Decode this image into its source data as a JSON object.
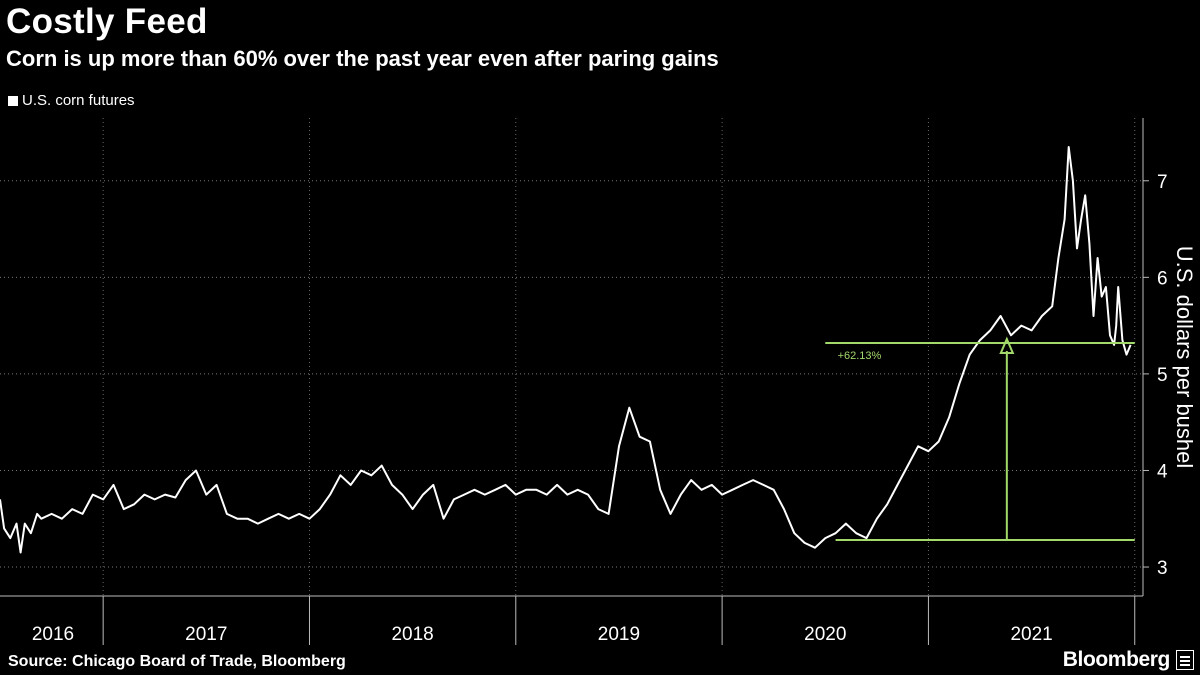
{
  "chart_data": {
    "type": "line",
    "title": "Costly Feed",
    "subtitle": "Corn is up more than 60% over the past year even after paring gains",
    "ylabel": "U.S. dollars per bushel",
    "ylim": [
      2.7,
      7.65
    ],
    "yticks": [
      3,
      4,
      5,
      6,
      7
    ],
    "xlim": [
      2016.0,
      2021.54
    ],
    "xtick_labels": [
      "2016",
      "2017",
      "2018",
      "2019",
      "2020",
      "2021"
    ],
    "grid": true,
    "legend_position": "top-left",
    "series": [
      {
        "name": "U.S. corn futures",
        "color": "#ffffff",
        "x": [
          2016.0,
          2016.02,
          2016.05,
          2016.08,
          2016.1,
          2016.12,
          2016.15,
          2016.18,
          2016.2,
          2016.25,
          2016.3,
          2016.35,
          2016.4,
          2016.45,
          2016.5,
          2016.55,
          2016.6,
          2016.65,
          2016.7,
          2016.75,
          2016.8,
          2016.85,
          2016.9,
          2016.95,
          2017.0,
          2017.05,
          2017.1,
          2017.15,
          2017.2,
          2017.25,
          2017.3,
          2017.35,
          2017.4,
          2017.45,
          2017.5,
          2017.55,
          2017.6,
          2017.65,
          2017.7,
          2017.75,
          2017.8,
          2017.85,
          2017.9,
          2017.95,
          2018.0,
          2018.05,
          2018.1,
          2018.15,
          2018.2,
          2018.25,
          2018.3,
          2018.35,
          2018.4,
          2018.45,
          2018.5,
          2018.55,
          2018.6,
          2018.65,
          2018.7,
          2018.75,
          2018.8,
          2018.85,
          2018.9,
          2018.95,
          2019.0,
          2019.05,
          2019.1,
          2019.15,
          2019.2,
          2019.25,
          2019.3,
          2019.35,
          2019.4,
          2019.45,
          2019.5,
          2019.55,
          2019.6,
          2019.65,
          2019.7,
          2019.75,
          2019.8,
          2019.85,
          2019.9,
          2019.95,
          2020.0,
          2020.05,
          2020.1,
          2020.15,
          2020.2,
          2020.25,
          2020.3,
          2020.35,
          2020.4,
          2020.45,
          2020.5,
          2020.55,
          2020.6,
          2020.65,
          2020.7,
          2020.75,
          2020.8,
          2020.85,
          2020.9,
          2020.95,
          2021.0,
          2021.05,
          2021.1,
          2021.13,
          2021.16,
          2021.18,
          2021.2,
          2021.22,
          2021.24,
          2021.26,
          2021.28,
          2021.3,
          2021.32,
          2021.34,
          2021.36,
          2021.38,
          2021.4,
          2021.41,
          2021.42,
          2021.44,
          2021.46,
          2021.48
        ],
        "values": [
          3.7,
          3.4,
          3.3,
          3.45,
          3.15,
          3.45,
          3.35,
          3.55,
          3.5,
          3.55,
          3.5,
          3.6,
          3.55,
          3.75,
          3.7,
          3.85,
          3.6,
          3.65,
          3.75,
          3.7,
          3.75,
          3.72,
          3.9,
          4.0,
          3.75,
          3.85,
          3.55,
          3.5,
          3.5,
          3.45,
          3.5,
          3.55,
          3.5,
          3.55,
          3.5,
          3.6,
          3.75,
          3.95,
          3.85,
          4.0,
          3.95,
          4.05,
          3.85,
          3.75,
          3.6,
          3.75,
          3.85,
          3.5,
          3.7,
          3.75,
          3.8,
          3.75,
          3.8,
          3.85,
          3.75,
          3.8,
          3.8,
          3.75,
          3.85,
          3.75,
          3.8,
          3.75,
          3.6,
          3.55,
          4.25,
          4.65,
          4.35,
          4.3,
          3.8,
          3.55,
          3.75,
          3.9,
          3.8,
          3.85,
          3.75,
          3.8,
          3.85,
          3.9,
          3.85,
          3.8,
          3.6,
          3.35,
          3.25,
          3.2,
          3.3,
          3.35,
          3.45,
          3.35,
          3.3,
          3.5,
          3.65,
          3.85,
          4.05,
          4.25,
          4.2,
          4.3,
          4.55,
          4.9,
          5.2,
          5.35,
          5.45,
          5.6,
          5.4,
          5.5,
          5.45,
          5.6,
          5.7,
          6.2,
          6.6,
          7.35,
          7.0,
          6.3,
          6.6,
          6.85,
          6.35,
          5.6,
          6.2,
          5.8,
          5.9,
          5.4,
          5.3,
          5.5,
          5.9,
          5.35,
          5.2,
          5.3
        ]
      }
    ],
    "annotations": [
      {
        "type": "change-marker",
        "label": "+62.13%",
        "color": "#a3d86b",
        "start_x": 2020.05,
        "start_y": 3.28,
        "end_x": 2021.48,
        "end_y": 5.32,
        "marker_x": 2020.88
      }
    ]
  },
  "footer": {
    "source": "Source: Chicago Board of Trade, Bloomberg",
    "brand": "Bloomberg"
  }
}
